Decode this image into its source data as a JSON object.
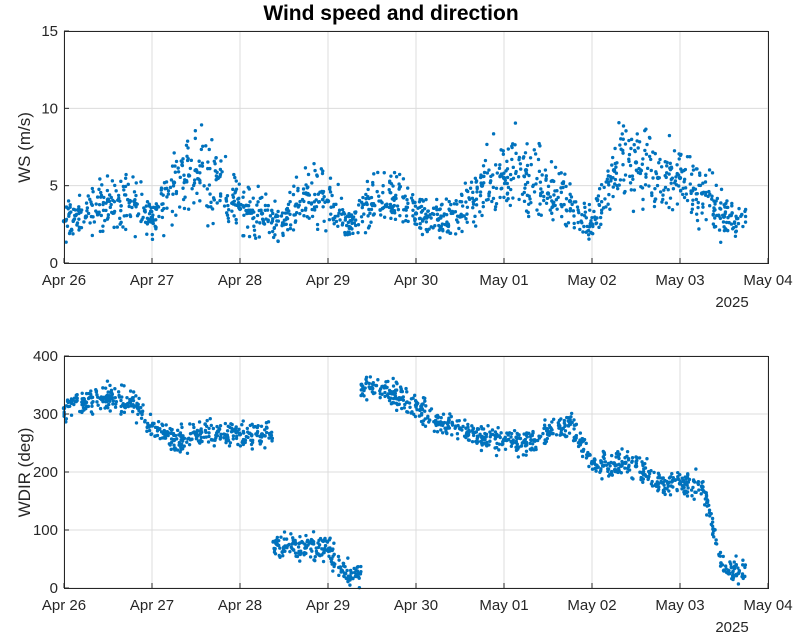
{
  "chart_data": {
    "title": "Wind speed and direction",
    "date_year_label": "2025",
    "colors": {
      "points": "#0072BD",
      "axes": "#262626",
      "grid": "#dcdcdc"
    },
    "x_tick_labels": [
      "Apr 26",
      "Apr 27",
      "Apr 28",
      "Apr 29",
      "Apr 30",
      "May 01",
      "May 02",
      "May 03",
      "May 04"
    ],
    "x_ticks": [
      "2025-04-26",
      "2025-04-27",
      "2025-04-28",
      "2025-04-29",
      "2025-04-30",
      "2025-05-01",
      "2025-05-02",
      "2025-05-03",
      "2025-05-04"
    ],
    "xlim": [
      "2025-04-26",
      "2025-05-04"
    ],
    "grid": true,
    "panels": [
      {
        "type": "scatter",
        "ylabel": "WS (m/s)",
        "ylim": [
          0,
          15
        ],
        "yticks": [
          0,
          5,
          10,
          15
        ],
        "series": [
          {
            "x": [
              "2025-04-26 00:00",
              "2025-04-26 06:00",
              "2025-04-26 12:00",
              "2025-04-26 18:00",
              "2025-04-27 00:00",
              "2025-04-27 06:00",
              "2025-04-27 12:00",
              "2025-04-27 18:00",
              "2025-04-28 00:00",
              "2025-04-28 06:00",
              "2025-04-28 12:00",
              "2025-04-28 18:00",
              "2025-04-29 00:00",
              "2025-04-29 06:00",
              "2025-04-29 12:00",
              "2025-04-29 18:00",
              "2025-04-30 00:00",
              "2025-04-30 06:00",
              "2025-04-30 12:00",
              "2025-04-30 18:00",
              "2025-05-01 00:00",
              "2025-05-01 06:00",
              "2025-05-01 12:00",
              "2025-05-01 18:00",
              "2025-05-02 00:00",
              "2025-05-02 06:00",
              "2025-05-02 12:00",
              "2025-05-02 18:00",
              "2025-05-03 00:00",
              "2025-05-03 06:00",
              "2025-05-03 12:00"
            ],
            "y": [
              2.7,
              3.0,
              4.1,
              4.0,
              2.8,
              5.2,
              6.0,
              5.5,
              3.5,
              3.2,
              2.5,
              4.5,
              4.0,
              2.3,
              3.8,
              4.2,
              3.2,
              2.8,
              3.0,
              5.0,
              5.5,
              6.0,
              4.5,
              4.0,
              2.5,
              6.0,
              6.5,
              5.5,
              5.5,
              4.5,
              3.0
            ]
          }
        ]
      },
      {
        "type": "scatter",
        "ylabel": "WDIR (deg)",
        "ylim": [
          0,
          400
        ],
        "yticks": [
          0,
          100,
          200,
          300,
          400
        ],
        "series": [
          {
            "x": [
              "2025-04-26 00:00",
              "2025-04-26 06:00",
              "2025-04-26 12:00",
              "2025-04-26 18:00",
              "2025-04-27 00:00",
              "2025-04-27 06:00",
              "2025-04-27 12:00",
              "2025-04-27 18:00",
              "2025-04-28 00:00",
              "2025-04-28 06:00",
              "2025-04-28 12:00",
              "2025-04-28 18:00",
              "2025-04-29 00:00",
              "2025-04-29 06:00",
              "2025-04-29 12:00",
              "2025-04-29 18:00",
              "2025-04-30 00:00",
              "2025-04-30 06:00",
              "2025-04-30 12:00",
              "2025-04-30 18:00",
              "2025-05-01 00:00",
              "2025-05-01 06:00",
              "2025-05-01 12:00",
              "2025-05-01 18:00",
              "2025-05-02 00:00",
              "2025-05-02 06:00",
              "2025-05-02 12:00",
              "2025-05-02 18:00",
              "2025-05-03 00:00",
              "2025-05-03 06:00",
              "2025-05-03 12:00"
            ],
            "y": [
              310,
              320,
              330,
              320,
              280,
              255,
              265,
              270,
              265,
              265,
              70,
              70,
              65,
              20,
              345,
              335,
              315,
              285,
              275,
              260,
              255,
              250,
              265,
              285,
              215,
              215,
              210,
              180,
              180,
              175,
              30
            ]
          }
        ]
      }
    ]
  }
}
